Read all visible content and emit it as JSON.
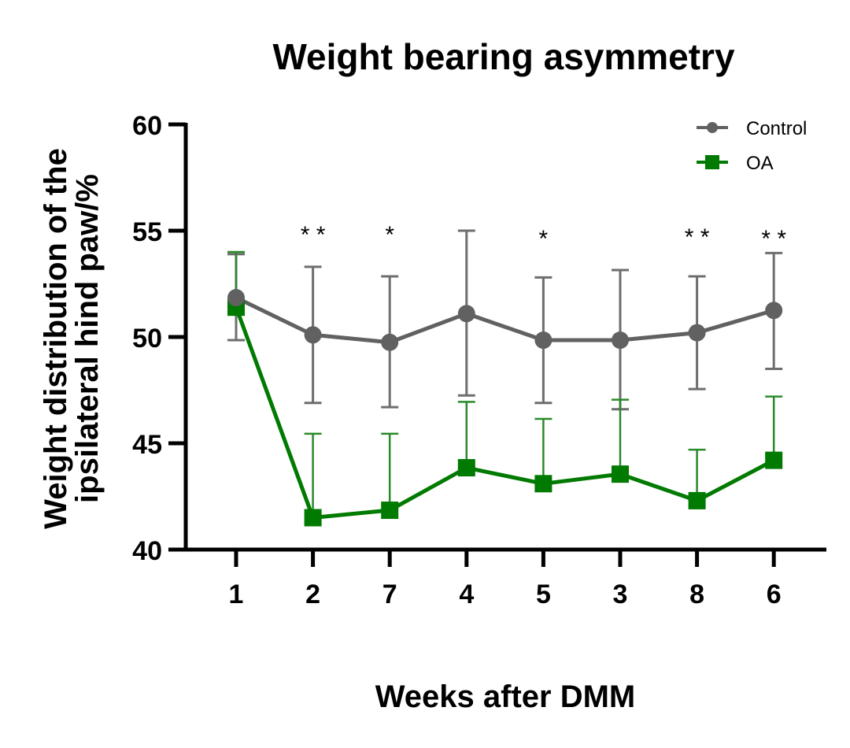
{
  "chart_data": {
    "type": "line",
    "title": "Weight bearing asymmetry",
    "xlabel": "Weeks after DMM",
    "ylabel_lines": [
      "Weight distribution of the",
      "ipsilateral hind paw/%"
    ],
    "ylim": [
      40,
      60
    ],
    "yticks": [
      40,
      45,
      50,
      55,
      60
    ],
    "categories": [
      "1",
      "2",
      "7",
      "4",
      "5",
      "3",
      "8",
      "6"
    ],
    "grid": false,
    "legend_position": "top-right",
    "series": [
      {
        "name": "Control",
        "marker": "circle",
        "color": "#616161",
        "errorbar_color": "#6e6e6e",
        "values": [
          51.85,
          50.1,
          49.75,
          51.1,
          49.85,
          49.85,
          50.2,
          51.25
        ],
        "error_upper": [
          53.9,
          53.3,
          52.85,
          55.0,
          52.8,
          53.15,
          52.85,
          53.95
        ],
        "error_lower": [
          49.85,
          46.9,
          46.7,
          47.25,
          46.9,
          46.6,
          47.55,
          48.5
        ]
      },
      {
        "name": "OA",
        "marker": "square",
        "color": "#007a00",
        "errorbar_color": "#2a8a2a",
        "values": [
          51.4,
          41.5,
          41.85,
          43.85,
          43.1,
          43.55,
          42.3,
          44.2
        ],
        "error_upper": [
          54.0,
          45.45,
          45.45,
          46.95,
          46.15,
          47.05,
          44.7,
          47.2
        ],
        "error_lower": null
      }
    ],
    "annotations": [
      "",
      "**",
      "*",
      "",
      "*",
      "",
      "**",
      "**"
    ]
  }
}
